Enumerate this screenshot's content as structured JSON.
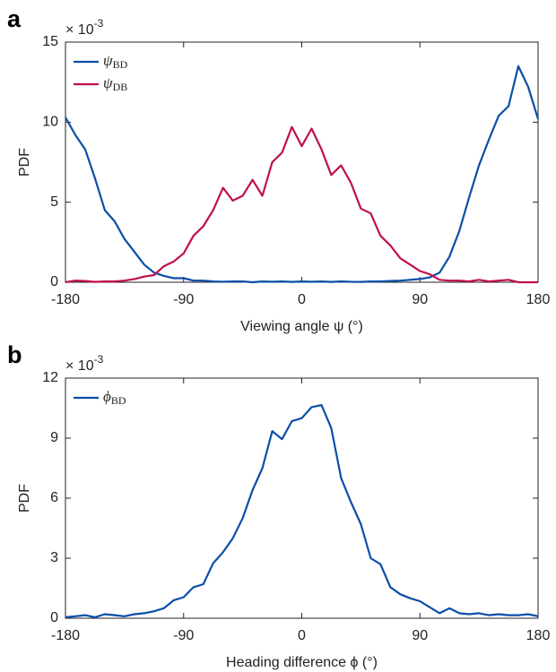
{
  "chart_data": [
    {
      "type": "line",
      "panel_label": "a",
      "multiplier": {
        "base": "× 10",
        "exponent": "-3"
      },
      "xlabel": "Viewing angle ψ (°)",
      "ylabel": "PDF",
      "legend": "upper left",
      "xlim": [
        -180,
        180
      ],
      "ylim": [
        0,
        15
      ],
      "xticks": [
        -180,
        -90,
        0,
        90,
        180
      ],
      "yticks": [
        0,
        5,
        10,
        15
      ],
      "x": [
        -180,
        -172.5,
        -165,
        -157.5,
        -150,
        -142.5,
        -135,
        -127.5,
        -120,
        -112.5,
        -105,
        -97.5,
        -90,
        -82.5,
        -75,
        -67.5,
        -60,
        -52.5,
        -45,
        -37.5,
        -30,
        -22.5,
        -15,
        -7.5,
        0,
        7.5,
        15,
        22.5,
        30,
        37.5,
        45,
        52.5,
        60,
        67.5,
        75,
        82.5,
        90,
        97.5,
        105,
        112.5,
        120,
        127.5,
        135,
        142.5,
        150,
        157.5,
        165,
        172.5,
        180
      ],
      "series": [
        {
          "name": "ψBD",
          "color": "#0a4ea8",
          "values": [
            10.3,
            9.2,
            8.3,
            6.5,
            4.5,
            3.8,
            2.7,
            1.9,
            1.1,
            0.6,
            0.4,
            0.25,
            0.25,
            0.1,
            0.1,
            0.05,
            0.03,
            0.05,
            0.05,
            0.0,
            0.05,
            0.03,
            0.05,
            0.02,
            0.05,
            0.03,
            0.05,
            0.02,
            0.05,
            0.03,
            0.02,
            0.05,
            0.05,
            0.08,
            0.1,
            0.15,
            0.2,
            0.3,
            0.6,
            1.6,
            3.2,
            5.3,
            7.3,
            8.9,
            10.4,
            11.0,
            13.5,
            12.2,
            10.2
          ]
        },
        {
          "name": "ψDB",
          "color": "#c0104a",
          "values": [
            0.0,
            0.1,
            0.08,
            0.02,
            0.05,
            0.05,
            0.1,
            0.2,
            0.35,
            0.45,
            1.0,
            1.3,
            1.8,
            2.9,
            3.5,
            4.5,
            5.9,
            5.1,
            5.4,
            6.4,
            5.4,
            7.5,
            8.1,
            9.7,
            8.5,
            9.6,
            8.3,
            6.7,
            7.3,
            6.2,
            4.6,
            4.3,
            2.9,
            2.3,
            1.5,
            1.1,
            0.7,
            0.5,
            0.15,
            0.1,
            0.1,
            0.05,
            0.15,
            0.05,
            0.1,
            0.15,
            0.0,
            0.0,
            0.0
          ]
        }
      ]
    },
    {
      "type": "line",
      "panel_label": "b",
      "multiplier": {
        "base": "× 10",
        "exponent": "-3"
      },
      "xlabel": "Heading difference ϕ (°)",
      "ylabel": "PDF",
      "legend": "upper left",
      "xlim": [
        -180,
        180
      ],
      "ylim": [
        0,
        12
      ],
      "xticks": [
        -180,
        -90,
        0,
        90,
        180
      ],
      "yticks": [
        0,
        3,
        6,
        9,
        12
      ],
      "x": [
        -180,
        -172.5,
        -165,
        -157.5,
        -150,
        -142.5,
        -135,
        -127.5,
        -120,
        -112.5,
        -105,
        -97.5,
        -90,
        -82.5,
        -75,
        -67.5,
        -60,
        -52.5,
        -45,
        -37.5,
        -30,
        -22.5,
        -15,
        -7.5,
        0,
        7.5,
        15,
        22.5,
        30,
        37.5,
        45,
        52.5,
        60,
        67.5,
        75,
        82.5,
        90,
        97.5,
        105,
        112.5,
        120,
        127.5,
        135,
        142.5,
        150,
        157.5,
        165,
        172.5,
        180
      ],
      "series": [
        {
          "name": "ϕBD",
          "color": "#0a4ea8",
          "values": [
            0.05,
            0.1,
            0.15,
            0.05,
            0.2,
            0.15,
            0.1,
            0.2,
            0.25,
            0.35,
            0.5,
            0.9,
            1.05,
            1.55,
            1.7,
            2.75,
            3.3,
            4.0,
            5.0,
            6.4,
            7.5,
            9.35,
            8.95,
            9.85,
            10.0,
            10.55,
            10.65,
            9.5,
            7.0,
            5.8,
            4.7,
            3.0,
            2.7,
            1.55,
            1.2,
            1.0,
            0.85,
            0.55,
            0.25,
            0.5,
            0.25,
            0.2,
            0.25,
            0.15,
            0.2,
            0.15,
            0.15,
            0.2,
            0.1
          ]
        }
      ]
    }
  ]
}
